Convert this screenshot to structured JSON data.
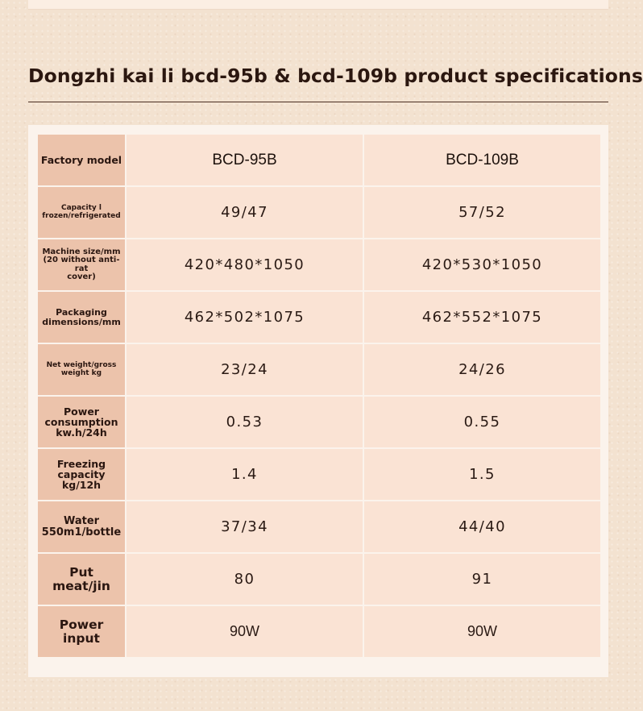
{
  "title": "Dongzhi kai li bcd-95b & bcd-109b product specifications",
  "table": {
    "header": {
      "label": "Factory model",
      "model_a": "BCD-95B",
      "model_b": "BCD-109B"
    },
    "rows": [
      {
        "label_line1": "Capacity l",
        "label_line2": "frozen/refrigerated",
        "a": "49/47",
        "b": "57/52"
      },
      {
        "label_line1": "Machine size/mm",
        "label_line2": "(20 without anti-rat",
        "label_line3": "cover)",
        "a": "420*480*1050",
        "b": "420*530*1050"
      },
      {
        "label_line1": "Packaging",
        "label_line2": "dimensions/mm",
        "a": "462*502*1075",
        "b": "462*552*1075"
      },
      {
        "label_line1": "Net weight/gross",
        "label_line2": "weight kg",
        "a": "23/24",
        "b": "24/26"
      },
      {
        "label_line1": "Power",
        "label_line2": "consumption",
        "label_line3": "kw.h/24h",
        "a": "0.53",
        "b": "0.55"
      },
      {
        "label_line1": "Freezing",
        "label_line2": "capacity",
        "label_line3": "kg/12h",
        "a": "1.4",
        "b": "1.5"
      },
      {
        "label_line1": "Water",
        "label_line2": "550m1/bottle",
        "a": "37/34",
        "b": "44/40"
      },
      {
        "label_line1": "Put meat/jin",
        "a": "80",
        "b": "91"
      },
      {
        "label_line1": "Power input",
        "a": "90W",
        "b": "90W"
      }
    ]
  }
}
